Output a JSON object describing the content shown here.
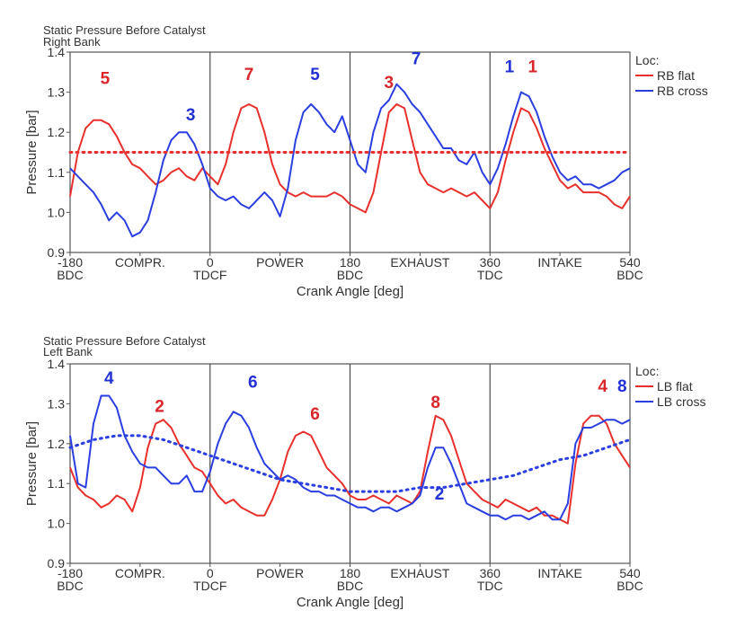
{
  "chart_data": [
    {
      "type": "line",
      "title": "Static Pressure Before Catalyst",
      "subtitle": "Right Bank",
      "xlabel": "Crank Angle [deg]",
      "ylabel": "Pressure [bar]",
      "xlim": [
        -180,
        540
      ],
      "ylim": [
        0.9,
        1.4
      ],
      "yticks": [
        "0.9",
        "1.0",
        "1.1",
        "1.2",
        "1.3",
        "1.4"
      ],
      "xtick_labels": [
        {
          "x": -180,
          "top": "-180",
          "bottom": "BDC"
        },
        {
          "x": -90,
          "top": "COMPR.",
          "bottom": ""
        },
        {
          "x": 0,
          "top": "0",
          "bottom": "TDCF"
        },
        {
          "x": 90,
          "top": "POWER",
          "bottom": ""
        },
        {
          "x": 180,
          "top": "180",
          "bottom": "BDC"
        },
        {
          "x": 270,
          "top": "EXHAUST",
          "bottom": ""
        },
        {
          "x": 360,
          "top": "360",
          "bottom": "TDC"
        },
        {
          "x": 450,
          "top": "INTAKE",
          "bottom": ""
        },
        {
          "x": 540,
          "top": "540",
          "bottom": "BDC"
        }
      ],
      "grid_x": [
        0,
        180,
        360
      ],
      "legend_title": "Loc:",
      "legend_position": "right",
      "series": [
        {
          "name": "RB flat",
          "color": "#e8302c",
          "x": [
            -180,
            -170,
            -160,
            -150,
            -140,
            -130,
            -120,
            -110,
            -100,
            -90,
            -80,
            -70,
            -60,
            -50,
            -40,
            -30,
            -20,
            -10,
            0,
            10,
            20,
            30,
            40,
            50,
            60,
            70,
            80,
            90,
            100,
            110,
            120,
            130,
            140,
            150,
            160,
            170,
            180,
            190,
            200,
            210,
            220,
            230,
            240,
            250,
            260,
            270,
            280,
            290,
            300,
            310,
            320,
            330,
            340,
            350,
            360,
            370,
            380,
            390,
            400,
            410,
            420,
            430,
            440,
            450,
            460,
            470,
            480,
            490,
            500,
            510,
            520,
            530,
            540
          ],
          "y": [
            1.04,
            1.15,
            1.21,
            1.23,
            1.23,
            1.22,
            1.19,
            1.15,
            1.12,
            1.11,
            1.09,
            1.07,
            1.08,
            1.1,
            1.11,
            1.09,
            1.08,
            1.11,
            1.09,
            1.07,
            1.12,
            1.2,
            1.26,
            1.27,
            1.26,
            1.2,
            1.12,
            1.07,
            1.05,
            1.04,
            1.05,
            1.04,
            1.04,
            1.04,
            1.05,
            1.04,
            1.02,
            1.01,
            1.0,
            1.05,
            1.15,
            1.25,
            1.27,
            1.26,
            1.18,
            1.1,
            1.07,
            1.06,
            1.05,
            1.06,
            1.05,
            1.04,
            1.05,
            1.03,
            1.01,
            1.05,
            1.13,
            1.2,
            1.26,
            1.25,
            1.21,
            1.16,
            1.12,
            1.08,
            1.06,
            1.07,
            1.05,
            1.05,
            1.05,
            1.04,
            1.02,
            1.01,
            1.04
          ]
        },
        {
          "name": "RB cross",
          "color": "#2b3fe0",
          "x": [
            -180,
            -170,
            -160,
            -150,
            -140,
            -130,
            -120,
            -110,
            -100,
            -90,
            -80,
            -70,
            -60,
            -50,
            -40,
            -30,
            -20,
            -10,
            0,
            10,
            20,
            30,
            40,
            50,
            60,
            70,
            80,
            90,
            100,
            110,
            120,
            130,
            140,
            150,
            160,
            170,
            180,
            190,
            200,
            210,
            220,
            230,
            240,
            250,
            260,
            270,
            280,
            290,
            300,
            310,
            320,
            330,
            340,
            350,
            360,
            370,
            380,
            390,
            400,
            410,
            420,
            430,
            440,
            450,
            460,
            470,
            480,
            490,
            500,
            510,
            520,
            530,
            540
          ],
          "y": [
            1.11,
            1.09,
            1.07,
            1.05,
            1.02,
            0.98,
            1.0,
            0.98,
            0.94,
            0.95,
            0.98,
            1.05,
            1.13,
            1.18,
            1.2,
            1.2,
            1.17,
            1.12,
            1.06,
            1.04,
            1.03,
            1.04,
            1.02,
            1.01,
            1.03,
            1.05,
            1.03,
            0.99,
            1.06,
            1.18,
            1.25,
            1.27,
            1.25,
            1.22,
            1.2,
            1.24,
            1.18,
            1.12,
            1.1,
            1.2,
            1.26,
            1.28,
            1.32,
            1.3,
            1.27,
            1.25,
            1.22,
            1.19,
            1.16,
            1.16,
            1.13,
            1.12,
            1.15,
            1.1,
            1.07,
            1.11,
            1.17,
            1.24,
            1.3,
            1.29,
            1.25,
            1.19,
            1.14,
            1.1,
            1.08,
            1.09,
            1.07,
            1.07,
            1.06,
            1.07,
            1.08,
            1.1,
            1.11
          ]
        },
        {
          "name": "",
          "color": "#e8302c",
          "style": "dotted",
          "x": [
            -180,
            540
          ],
          "y": [
            1.15,
            1.15
          ]
        }
      ],
      "annotations": [
        {
          "text": "5",
          "x": -135,
          "y": 1.32,
          "color": "#d9262b"
        },
        {
          "text": "3",
          "x": -25,
          "y": 1.23,
          "color": "#2231d4"
        },
        {
          "text": "7",
          "x": 50,
          "y": 1.33,
          "color": "#d9262b"
        },
        {
          "text": "5",
          "x": 135,
          "y": 1.33,
          "color": "#2231d4"
        },
        {
          "text": "3",
          "x": 230,
          "y": 1.31,
          "color": "#d9262b"
        },
        {
          "text": "7",
          "x": 265,
          "y": 1.37,
          "color": "#2231d4"
        },
        {
          "text": "1",
          "x": 385,
          "y": 1.35,
          "color": "#2231d4"
        },
        {
          "text": "1",
          "x": 415,
          "y": 1.35,
          "color": "#d9262b"
        }
      ]
    },
    {
      "type": "line",
      "title": "Static Pressure Before Catalyst",
      "subtitle": "Left Bank",
      "xlabel": "Crank Angle [deg]",
      "ylabel": "Pressure [bar]",
      "xlim": [
        -180,
        540
      ],
      "ylim": [
        0.9,
        1.4
      ],
      "yticks": [
        "0.9",
        "1.0",
        "1.1",
        "1.2",
        "1.3",
        "1.4"
      ],
      "xtick_labels": [
        {
          "x": -180,
          "top": "-180",
          "bottom": "BDC"
        },
        {
          "x": -90,
          "top": "COMPR.",
          "bottom": ""
        },
        {
          "x": 0,
          "top": "0",
          "bottom": "TDCF"
        },
        {
          "x": 90,
          "top": "POWER",
          "bottom": ""
        },
        {
          "x": 180,
          "top": "180",
          "bottom": "BDC"
        },
        {
          "x": 270,
          "top": "EXHAUST",
          "bottom": ""
        },
        {
          "x": 360,
          "top": "360",
          "bottom": "TDC"
        },
        {
          "x": 450,
          "top": "INTAKE",
          "bottom": ""
        },
        {
          "x": 540,
          "top": "540",
          "bottom": "BDC"
        }
      ],
      "grid_x": [
        0,
        180,
        360
      ],
      "legend_title": "Loc:",
      "legend_position": "right",
      "series": [
        {
          "name": "LB flat",
          "color": "#e8302c",
          "x": [
            -180,
            -170,
            -160,
            -150,
            -140,
            -130,
            -120,
            -110,
            -100,
            -90,
            -80,
            -70,
            -60,
            -50,
            -40,
            -30,
            -20,
            -10,
            0,
            10,
            20,
            30,
            40,
            50,
            60,
            70,
            80,
            90,
            100,
            110,
            120,
            130,
            140,
            150,
            160,
            170,
            180,
            190,
            200,
            210,
            220,
            230,
            240,
            250,
            260,
            270,
            280,
            290,
            300,
            310,
            320,
            330,
            340,
            350,
            360,
            370,
            380,
            390,
            400,
            410,
            420,
            430,
            440,
            450,
            460,
            470,
            480,
            490,
            500,
            510,
            520,
            530,
            540
          ],
          "y": [
            1.14,
            1.09,
            1.07,
            1.06,
            1.04,
            1.05,
            1.07,
            1.06,
            1.03,
            1.09,
            1.19,
            1.25,
            1.26,
            1.24,
            1.2,
            1.17,
            1.14,
            1.13,
            1.1,
            1.07,
            1.05,
            1.06,
            1.04,
            1.03,
            1.02,
            1.02,
            1.06,
            1.11,
            1.18,
            1.22,
            1.23,
            1.22,
            1.18,
            1.14,
            1.12,
            1.1,
            1.07,
            1.06,
            1.06,
            1.07,
            1.06,
            1.05,
            1.07,
            1.06,
            1.05,
            1.08,
            1.18,
            1.27,
            1.26,
            1.22,
            1.16,
            1.1,
            1.08,
            1.06,
            1.05,
            1.04,
            1.06,
            1.05,
            1.04,
            1.03,
            1.04,
            1.02,
            1.02,
            1.01,
            1.0,
            1.15,
            1.25,
            1.27,
            1.27,
            1.25,
            1.2,
            1.17,
            1.14
          ]
        },
        {
          "name": "LB cross",
          "color": "#2b3fe0",
          "x": [
            -180,
            -170,
            -160,
            -150,
            -140,
            -130,
            -120,
            -110,
            -100,
            -90,
            -80,
            -70,
            -60,
            -50,
            -40,
            -30,
            -20,
            -10,
            0,
            10,
            20,
            30,
            40,
            50,
            60,
            70,
            80,
            90,
            100,
            110,
            120,
            130,
            140,
            150,
            160,
            170,
            180,
            190,
            200,
            210,
            220,
            230,
            240,
            250,
            260,
            270,
            280,
            290,
            300,
            310,
            320,
            330,
            340,
            350,
            360,
            370,
            380,
            390,
            400,
            410,
            420,
            430,
            440,
            450,
            460,
            470,
            480,
            490,
            500,
            510,
            520,
            530,
            540
          ],
          "y": [
            1.22,
            1.1,
            1.09,
            1.25,
            1.32,
            1.32,
            1.29,
            1.22,
            1.18,
            1.15,
            1.14,
            1.14,
            1.12,
            1.1,
            1.1,
            1.12,
            1.08,
            1.08,
            1.13,
            1.2,
            1.25,
            1.28,
            1.27,
            1.24,
            1.19,
            1.15,
            1.13,
            1.11,
            1.12,
            1.11,
            1.09,
            1.08,
            1.08,
            1.07,
            1.07,
            1.06,
            1.05,
            1.04,
            1.04,
            1.03,
            1.04,
            1.04,
            1.03,
            1.04,
            1.05,
            1.07,
            1.14,
            1.19,
            1.19,
            1.15,
            1.1,
            1.05,
            1.04,
            1.03,
            1.02,
            1.02,
            1.01,
            1.02,
            1.02,
            1.01,
            1.02,
            1.03,
            1.01,
            1.01,
            1.05,
            1.2,
            1.24,
            1.24,
            1.25,
            1.26,
            1.26,
            1.25,
            1.26
          ]
        },
        {
          "name": "",
          "color": "#2b3fe0",
          "style": "dotted",
          "x": [
            -180,
            -150,
            -120,
            -90,
            -60,
            -30,
            0,
            30,
            60,
            90,
            120,
            150,
            180,
            210,
            240,
            270,
            300,
            330,
            360,
            390,
            420,
            450,
            480,
            510,
            540
          ],
          "y": [
            1.19,
            1.21,
            1.22,
            1.22,
            1.21,
            1.19,
            1.17,
            1.15,
            1.13,
            1.11,
            1.1,
            1.09,
            1.08,
            1.08,
            1.08,
            1.09,
            1.09,
            1.1,
            1.11,
            1.12,
            1.14,
            1.16,
            1.17,
            1.19,
            1.21
          ]
        }
      ],
      "annotations": [
        {
          "text": "4",
          "x": -130,
          "y": 1.35,
          "color": "#2231d4"
        },
        {
          "text": "2",
          "x": -65,
          "y": 1.28,
          "color": "#d9262b"
        },
        {
          "text": "6",
          "x": 55,
          "y": 1.34,
          "color": "#2231d4"
        },
        {
          "text": "6",
          "x": 135,
          "y": 1.26,
          "color": "#d9262b"
        },
        {
          "text": "8",
          "x": 290,
          "y": 1.29,
          "color": "#d9262b"
        },
        {
          "text": "2",
          "x": 295,
          "y": 1.06,
          "color": "#2231d4"
        },
        {
          "text": "4",
          "x": 505,
          "y": 1.33,
          "color": "#d9262b"
        },
        {
          "text": "8",
          "x": 530,
          "y": 1.33,
          "color": "#2231d4"
        }
      ]
    }
  ]
}
